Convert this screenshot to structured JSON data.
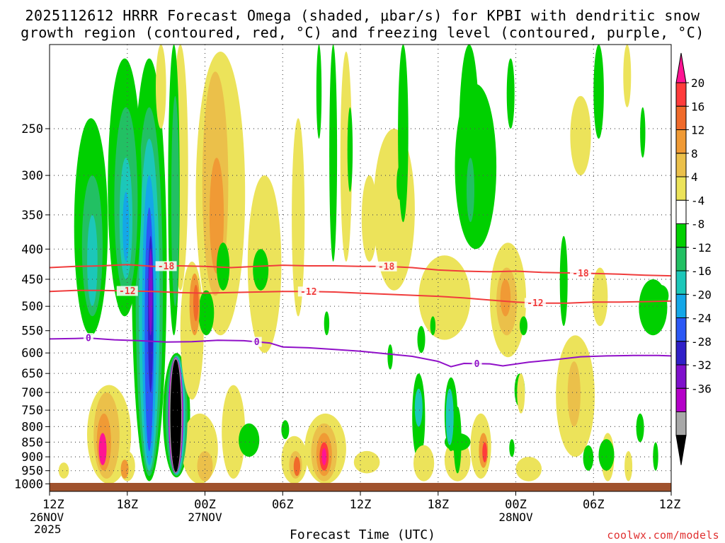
{
  "title_line1": "2025112612 HRRR Forecast Omega (shaded, μbar/s) for KPBI with dendritic snow",
  "title_line2": "growth region (contoured, red, °C) and freezing level (contoured, purple, °C)",
  "credit": "coolwx.com/models",
  "chart_data": {
    "type": "heatmap",
    "title": "2025112612 HRRR Forecast Omega (shaded, μbar/s) for KPBI with dendritic snow growth region (contoured, red, °C) and freezing level (contoured, purple, °C)",
    "xlabel": "Forecast Time (UTC)",
    "ylabel": "",
    "x_range_hours": [
      0,
      48
    ],
    "y_range_hpa": [
      1030,
      180
    ],
    "y_scale": "log-pressure",
    "y_ticks": [
      250,
      300,
      350,
      400,
      450,
      500,
      550,
      600,
      650,
      700,
      750,
      800,
      850,
      900,
      950,
      1000
    ],
    "x_ticks": [
      {
        "hour": 0,
        "label": "12Z",
        "sub1": "26NOV",
        "sub2": "2025"
      },
      {
        "hour": 6,
        "label": "18Z",
        "sub1": "",
        "sub2": ""
      },
      {
        "hour": 12,
        "label": "00Z",
        "sub1": "27NOV",
        "sub2": ""
      },
      {
        "hour": 18,
        "label": "06Z",
        "sub1": "",
        "sub2": ""
      },
      {
        "hour": 24,
        "label": "12Z",
        "sub1": "",
        "sub2": ""
      },
      {
        "hour": 30,
        "label": "18Z",
        "sub1": "",
        "sub2": ""
      },
      {
        "hour": 36,
        "label": "00Z",
        "sub1": "28NOV",
        "sub2": ""
      },
      {
        "hour": 42,
        "label": "06Z",
        "sub1": "",
        "sub2": ""
      },
      {
        "hour": 48,
        "label": "12Z",
        "sub1": "",
        "sub2": ""
      }
    ],
    "colorbar": {
      "labels": [
        20,
        16,
        12,
        8,
        4,
        -4,
        -8,
        -12,
        -16,
        -20,
        -24,
        -28,
        -32,
        -36
      ],
      "colors": [
        "#ff1493",
        "#ff3b3b",
        "#f06a2a",
        "#f09a35",
        "#ebc04a",
        "#ece35a",
        "#ffffff",
        "#00d000",
        "#22c063",
        "#1cc7b9",
        "#14a7e8",
        "#2b58f5",
        "#3020c8",
        "#7f10cc",
        "#b400c8",
        "#a8a8a8",
        "#000000"
      ]
    },
    "series": [
      {
        "name": "-18 °C isotherm",
        "color": "#f03c3c",
        "label": "-18",
        "points": [
          [
            0,
            430
          ],
          [
            2,
            428
          ],
          [
            4,
            427
          ],
          [
            6,
            425
          ],
          [
            8,
            428
          ],
          [
            10,
            427
          ],
          [
            12,
            428
          ],
          [
            14,
            430
          ],
          [
            16,
            428
          ],
          [
            18,
            426
          ],
          [
            20,
            427
          ],
          [
            22,
            427
          ],
          [
            24,
            428
          ],
          [
            26,
            428
          ],
          [
            28,
            430
          ],
          [
            30,
            434
          ],
          [
            32,
            436
          ],
          [
            34,
            437
          ],
          [
            36,
            436
          ],
          [
            38,
            438
          ],
          [
            40,
            439
          ],
          [
            42,
            440
          ],
          [
            44,
            441
          ],
          [
            46,
            443
          ],
          [
            48,
            444
          ]
        ],
        "label_hours": [
          9,
          26,
          41
        ]
      },
      {
        "name": "-12 °C isotherm",
        "color": "#f03c3c",
        "label": "-12",
        "points": [
          [
            0,
            472
          ],
          [
            2,
            470
          ],
          [
            4,
            470
          ],
          [
            6,
            471
          ],
          [
            8,
            472
          ],
          [
            10,
            474
          ],
          [
            12,
            475
          ],
          [
            14,
            474
          ],
          [
            16,
            473
          ],
          [
            18,
            472
          ],
          [
            20,
            472
          ],
          [
            22,
            473
          ],
          [
            24,
            475
          ],
          [
            26,
            477
          ],
          [
            28,
            479
          ],
          [
            30,
            481
          ],
          [
            32,
            484
          ],
          [
            34,
            488
          ],
          [
            36,
            492
          ],
          [
            38,
            494
          ],
          [
            40,
            494
          ],
          [
            42,
            492
          ],
          [
            44,
            492
          ],
          [
            46,
            491
          ],
          [
            48,
            490
          ]
        ],
        "label_hours": [
          6,
          20,
          37.5
        ]
      },
      {
        "name": "0 °C freezing level",
        "color": "#9010c8",
        "label": "0",
        "points": [
          [
            0,
            568
          ],
          [
            2,
            567
          ],
          [
            3,
            566
          ],
          [
            5,
            570
          ],
          [
            7,
            572
          ],
          [
            9,
            575
          ],
          [
            11,
            574
          ],
          [
            13,
            571
          ],
          [
            15,
            572
          ],
          [
            17,
            577
          ],
          [
            18,
            586
          ],
          [
            20,
            588
          ],
          [
            22,
            592
          ],
          [
            24,
            596
          ],
          [
            26,
            602
          ],
          [
            28,
            608
          ],
          [
            30,
            620
          ],
          [
            31,
            633
          ],
          [
            32,
            625
          ],
          [
            34,
            626
          ],
          [
            35,
            631
          ],
          [
            37,
            622
          ],
          [
            39,
            616
          ],
          [
            41,
            609
          ],
          [
            43,
            607
          ],
          [
            45,
            606
          ],
          [
            47,
            606
          ],
          [
            48,
            607
          ]
        ],
        "label_hours": [
          3,
          16,
          33
        ]
      }
    ],
    "omega_features": [
      {
        "name": "upward-motion-column-18Z",
        "hour": 7.6,
        "p_top": 420,
        "p_bot": 990,
        "min_value": -30
      },
      {
        "name": "upward-motion-core-21Z",
        "hour": 9.6,
        "p_top": 600,
        "p_bot": 960,
        "min_value": -40
      },
      {
        "name": "sinking-motion-09Z",
        "hour": 21.3,
        "p_top": 750,
        "p_bot": 995,
        "max_value": 20
      },
      {
        "name": "sinking-motion-16Z",
        "hour": 4.0,
        "p_top": 750,
        "p_bot": 1000,
        "max_value": 20
      }
    ]
  }
}
